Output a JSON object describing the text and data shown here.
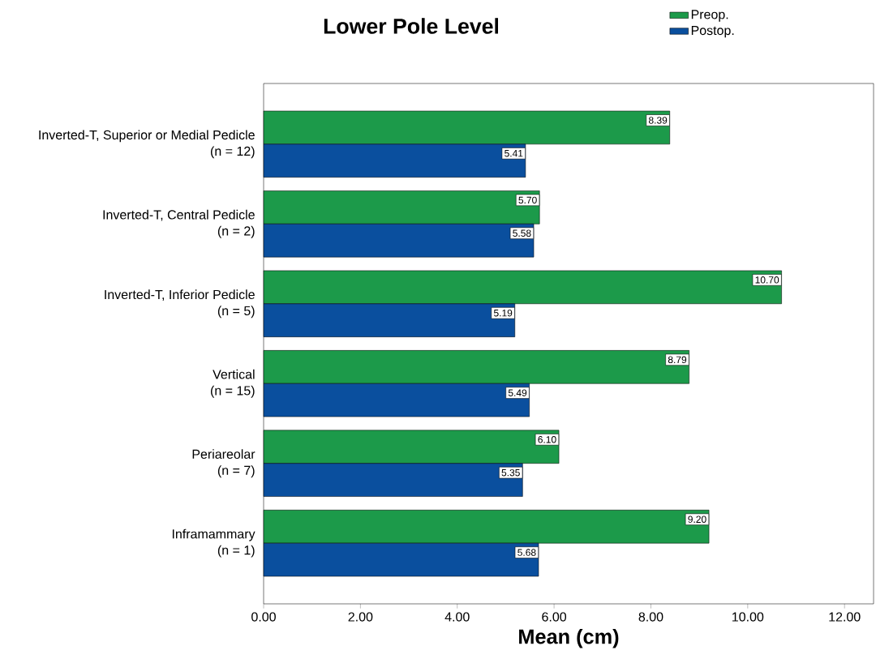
{
  "chart_data": {
    "type": "bar",
    "orientation": "horizontal",
    "title": "Lower Pole Level",
    "xlabel": "Mean (cm)",
    "categories": [
      "Inverted-T, Superior or Medial Pedicle\n(n = 12)",
      "Inverted-T, Central Pedicle\n(n = 2)",
      "Inverted-T, Inferior Pedicle\n(n = 5)",
      "Vertical\n(n = 15)",
      "Periareolar\n(n = 7)",
      "Inframammary\n(n = 1)"
    ],
    "series": [
      {
        "name": "Preop.",
        "color": "#1c9a4a",
        "values": [
          8.39,
          5.7,
          10.7,
          8.79,
          6.1,
          9.2
        ],
        "value_labels": [
          "8.39",
          "5.70",
          "10.70",
          "8.79",
          "6.10",
          "9.20"
        ]
      },
      {
        "name": "Postop.",
        "color": "#0a4f9e",
        "values": [
          5.41,
          5.58,
          5.19,
          5.49,
          5.35,
          5.68
        ],
        "value_labels": [
          "5.41",
          "5.58",
          "5.19",
          "5.49",
          "5.35",
          "5.68"
        ]
      }
    ],
    "xlim": [
      0,
      12.6
    ],
    "xticks": [
      {
        "value": 0,
        "label": "0.00"
      },
      {
        "value": 2,
        "label": "2.00"
      },
      {
        "value": 4,
        "label": "4.00"
      },
      {
        "value": 6,
        "label": "6.00"
      },
      {
        "value": 8,
        "label": "8.00"
      },
      {
        "value": 10,
        "label": "10.00"
      },
      {
        "value": 12,
        "label": "12.00"
      }
    ],
    "legend": "top right",
    "grid": false
  }
}
